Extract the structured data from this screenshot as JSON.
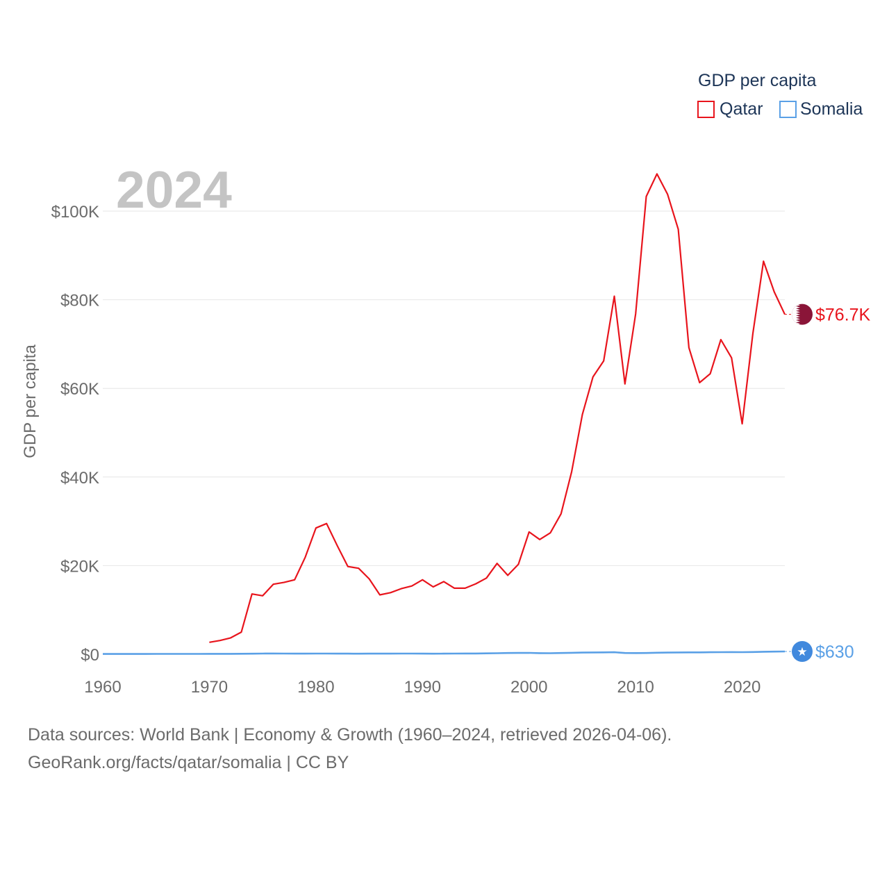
{
  "chart_data": {
    "type": "line",
    "title": "GDP per capita",
    "ylabel": "GDP per capita",
    "xlabel": "",
    "year_label": "2024",
    "xlim": [
      1960,
      2024
    ],
    "ylim": [
      0,
      110000
    ],
    "x_ticks": [
      1960,
      1970,
      1980,
      1990,
      2000,
      2010,
      2020
    ],
    "y_ticks": [
      0,
      20000,
      40000,
      60000,
      80000,
      100000
    ],
    "y_tick_labels": [
      "$0",
      "$20K",
      "$40K",
      "$60K",
      "$80K",
      "$100K"
    ],
    "grid": true,
    "legend_position": "top-right",
    "series": [
      {
        "name": "Qatar",
        "color": "#e8141c",
        "end_label": "$76.7K",
        "end_marker": "qatar-flag-icon",
        "x": [
          1970,
          1971,
          1972,
          1973,
          1974,
          1975,
          1976,
          1977,
          1978,
          1979,
          1980,
          1981,
          1982,
          1983,
          1984,
          1985,
          1986,
          1987,
          1988,
          1989,
          1990,
          1991,
          1992,
          1993,
          1994,
          1995,
          1996,
          1997,
          1998,
          1999,
          2000,
          2001,
          2002,
          2003,
          2004,
          2005,
          2006,
          2007,
          2008,
          2009,
          2010,
          2011,
          2012,
          2013,
          2014,
          2015,
          2016,
          2017,
          2018,
          2019,
          2020,
          2021,
          2022,
          2023,
          2024
        ],
        "y": [
          2700,
          3100,
          3700,
          5000,
          13600,
          13200,
          15800,
          16200,
          16800,
          21900,
          28500,
          29500,
          24500,
          19800,
          19400,
          17000,
          13400,
          13900,
          14800,
          15400,
          16800,
          15200,
          16400,
          14900,
          14900,
          15900,
          17200,
          20500,
          17800,
          20300,
          27600,
          25900,
          27400,
          31700,
          41200,
          54100,
          62600,
          66200,
          80800,
          61000,
          76800,
          103300,
          108400,
          103800,
          95900,
          69200,
          61300,
          63300,
          71000,
          66900,
          52000,
          72400,
          88700,
          81800,
          76700
        ]
      },
      {
        "name": "Somalia",
        "color": "#5aa0e6",
        "end_label": "$630",
        "end_marker": "somalia-flag-icon",
        "x": [
          1960,
          1961,
          1962,
          1963,
          1964,
          1965,
          1966,
          1967,
          1968,
          1969,
          1970,
          1971,
          1972,
          1973,
          1974,
          1975,
          1976,
          1977,
          1978,
          1979,
          1980,
          1981,
          1982,
          1983,
          1984,
          1985,
          1986,
          1987,
          1988,
          1989,
          1990,
          1991,
          1992,
          1993,
          1994,
          1995,
          1996,
          1997,
          1998,
          1999,
          2000,
          2001,
          2002,
          2003,
          2004,
          2005,
          2006,
          2007,
          2008,
          2009,
          2010,
          2011,
          2012,
          2013,
          2014,
          2015,
          2016,
          2017,
          2018,
          2019,
          2020,
          2021,
          2022,
          2023,
          2024
        ],
        "y": [
          60,
          62,
          65,
          68,
          70,
          72,
          75,
          78,
          80,
          85,
          90,
          95,
          100,
          110,
          130,
          160,
          170,
          150,
          140,
          145,
          150,
          150,
          140,
          140,
          130,
          135,
          140,
          145,
          150,
          160,
          140,
          130,
          140,
          160,
          170,
          180,
          200,
          230,
          280,
          300,
          310,
          250,
          240,
          280,
          330,
          370,
          400,
          420,
          450,
          280,
          270,
          280,
          350,
          370,
          400,
          420,
          430,
          460,
          470,
          490,
          470,
          500,
          560,
          600,
          630
        ]
      }
    ]
  },
  "legend": {
    "title": "GDP per capita",
    "items": [
      "Qatar",
      "Somalia"
    ]
  },
  "footer": {
    "line1": "Data sources: World Bank | Economy & Growth (1960–2024, retrieved 2026-04-06).",
    "line2": "GeoRank.org/facts/qatar/somalia | CC BY"
  },
  "colors": {
    "axis_text": "#6b6b6b",
    "grid": "#e6e6e6",
    "year_text": "#c4c4c4",
    "legend_title": "#1d3557"
  }
}
